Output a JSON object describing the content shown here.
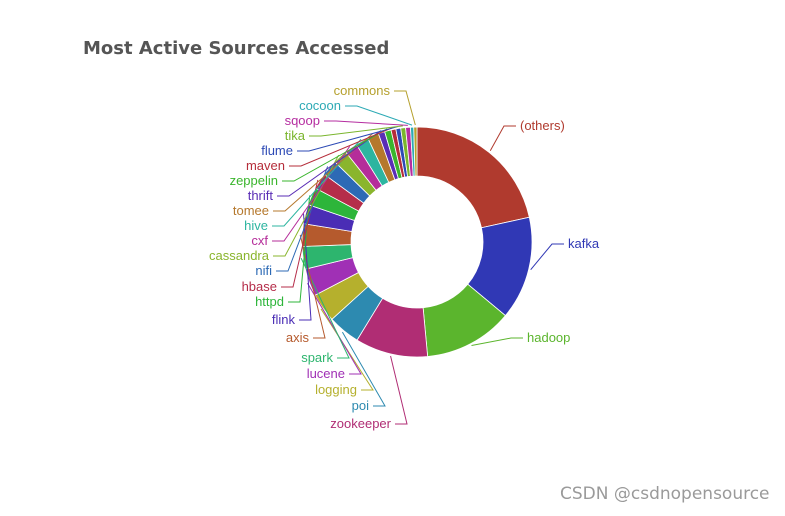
{
  "chart_data": {
    "type": "pie",
    "donut": true,
    "title": "Most Active Sources Accessed",
    "legend": "none",
    "slices": [
      {
        "label": "(others)",
        "value": 95,
        "color": "#b03a2e"
      },
      {
        "label": "kafka",
        "value": 64,
        "color": "#3038b5"
      },
      {
        "label": "hadoop",
        "value": 55,
        "color": "#5bb52d"
      },
      {
        "label": "zookeeper",
        "value": 45,
        "color": "#b02d74"
      },
      {
        "label": "poi",
        "value": 20,
        "color": "#2d8ab0"
      },
      {
        "label": "logging",
        "value": 18,
        "color": "#b5b02d"
      },
      {
        "label": "lucene",
        "value": 17,
        "color": "#a030b5"
      },
      {
        "label": "spark",
        "value": 14,
        "color": "#2db56e"
      },
      {
        "label": "axis",
        "value": 14,
        "color": "#b55a2d"
      },
      {
        "label": "flink",
        "value": 12,
        "color": "#4a2db5"
      },
      {
        "label": "httpd",
        "value": 11,
        "color": "#2db53a"
      },
      {
        "label": "hbase",
        "value": 10,
        "color": "#b52d4a"
      },
      {
        "label": "nifi",
        "value": 10,
        "color": "#2d6ab5"
      },
      {
        "label": "cassandra",
        "value": 9,
        "color": "#8ab52d"
      },
      {
        "label": "cxf",
        "value": 8,
        "color": "#b52d9a"
      },
      {
        "label": "hive",
        "value": 8,
        "color": "#2db5a0"
      },
      {
        "label": "tomee",
        "value": 7,
        "color": "#b5782d"
      },
      {
        "label": "thrift",
        "value": 4,
        "color": "#5a2db5"
      },
      {
        "label": "zeppelin",
        "value": 4,
        "color": "#3ab52d"
      },
      {
        "label": "maven",
        "value": 3,
        "color": "#b52d3a"
      },
      {
        "label": "flume",
        "value": 3,
        "color": "#2d4ab5"
      },
      {
        "label": "tika",
        "value": 3,
        "color": "#7ab52d"
      },
      {
        "label": "sqoop",
        "value": 3,
        "color": "#b52da0"
      },
      {
        "label": "cocoon",
        "value": 2,
        "color": "#2daab5"
      },
      {
        "label": "commons",
        "value": 2,
        "color": "#b5a02d"
      }
    ]
  },
  "watermark": "CSDN @csdnopensource"
}
